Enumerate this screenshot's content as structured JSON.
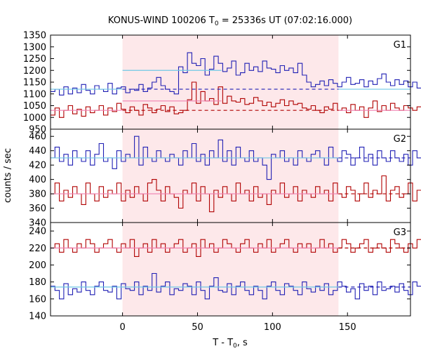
{
  "chart_data": {
    "type": "line",
    "title_main": "KONUS-WIND 100206 T",
    "title_sub": "0",
    "title_rest": " = 25336s UT (07:02:16.000)",
    "xlabel_main": "T - T",
    "xlabel_sub": "0",
    "xlabel_rest": ", s",
    "ylabel": "counts / sec",
    "xlim": [
      -48,
      192
    ],
    "x_ticks": [
      0,
      50,
      100,
      150
    ],
    "shaded_interval": [
      0,
      144
    ],
    "colors": {
      "blue_series": "#1f1fb4",
      "red_series": "#b00000",
      "blue_fit": "#70c8e6",
      "red_fit": "#f080b0",
      "shade": "#fde8ea"
    },
    "panels": [
      {
        "label": "G1",
        "ylim": [
          950,
          1350
        ],
        "y_ticks": [
          950,
          1000,
          1050,
          1100,
          1150,
          1200,
          1250,
          1300,
          1350
        ],
        "series": [
          {
            "color_key": "blue",
            "x0": -48,
            "dt": 2.944,
            "values": [
              1110,
              1120,
              1095,
              1130,
              1100,
              1125,
              1105,
              1140,
              1115,
              1100,
              1135,
              1120,
              1110,
              1145,
              1100,
              1125,
              1130,
              1105,
              1120,
              1115,
              1140,
              1110,
              1125,
              1150,
              1170,
              1135,
              1120,
              1110,
              1100,
              1215,
              1190,
              1275,
              1230,
              1220,
              1250,
              1180,
              1205,
              1260,
              1230,
              1195,
              1210,
              1240,
              1180,
              1190,
              1230,
              1200,
              1215,
              1195,
              1240,
              1210,
              1205,
              1190,
              1220,
              1200,
              1210,
              1190,
              1230,
              1180,
              1150,
              1130,
              1140,
              1155,
              1135,
              1160,
              1145,
              1130,
              1150,
              1170,
              1140,
              1145,
              1160,
              1130,
              1155,
              1140,
              1165,
              1185,
              1150,
              1135,
              1160,
              1140,
              1155,
              1130,
              1150,
              1125,
              1110,
              1140,
              1130,
              1120,
              1145,
              1120,
              1130,
              1110,
              1130,
              1120,
              1140,
              1105,
              1125,
              1135,
              1115,
              1130,
              1120,
              1110,
              1125,
              1115,
              1130,
              1120,
              1105,
              1125,
              1110,
              1120,
              1130,
              1115,
              1120
            ]
          },
          {
            "color_key": "red",
            "x0": -48,
            "dt": 2.944,
            "values": [
              1010,
              1040,
              1000,
              1030,
              1050,
              1015,
              1035,
              1005,
              1045,
              1020,
              1030,
              1050,
              1010,
              1040,
              1025,
              1060,
              1035,
              1020,
              1045,
              1030,
              1010,
              1055,
              1040,
              1020,
              1035,
              1050,
              1025,
              1045,
              1015,
              1020,
              1030,
              1075,
              1150,
              1060,
              1110,
              1070,
              1080,
              1055,
              1130,
              1060,
              1090,
              1070,
              1065,
              1080,
              1055,
              1060,
              1085,
              1070,
              1050,
              1065,
              1045,
              1060,
              1075,
              1050,
              1070,
              1055,
              1060,
              1040,
              1035,
              1050,
              1030,
              1020,
              1045,
              1035,
              1060,
              1030,
              1040,
              1020,
              1055,
              1030,
              1045,
              1000,
              1040,
              1070,
              1025,
              1050,
              1030,
              1060,
              1040,
              1030,
              1050,
              1040,
              1030,
              1045,
              1020,
              1035,
              1045,
              1025,
              1040,
              1060,
              1030,
              1050,
              1030,
              1040,
              1020,
              1045,
              1030,
              1035,
              1050,
              1025,
              1040,
              1030,
              1045,
              1020,
              1035,
              1040,
              1030,
              1025,
              1045,
              1035,
              1020,
              1040,
              1030
            ]
          }
        ],
        "fits": [
          {
            "color_key": "blue",
            "style": "solid",
            "x": [
              -48,
              0
            ],
            "y": 1120
          },
          {
            "color_key": "blue",
            "style": "solid",
            "x": [
              0,
              66
            ],
            "y": 1200
          },
          {
            "color_key": "blue",
            "style": "dashed",
            "x": [
              0,
              144
            ],
            "y": 1120
          },
          {
            "color_key": "blue",
            "style": "solid",
            "x": [
              144,
              192
            ],
            "y": 1120
          },
          {
            "color_key": "red",
            "style": "solid",
            "x": [
              -48,
              0
            ],
            "y": 1030
          },
          {
            "color_key": "red",
            "style": "solid",
            "x": [
              0,
              66
            ],
            "y": 1070
          },
          {
            "color_key": "red",
            "style": "dashed",
            "x": [
              0,
              144
            ],
            "y": 1030
          },
          {
            "color_key": "red",
            "style": "solid",
            "x": [
              144,
              192
            ],
            "y": 1030
          }
        ]
      },
      {
        "label": "G2",
        "ylim": [
          340,
          470
        ],
        "y_ticks": [
          340,
          360,
          380,
          400,
          420,
          440,
          460
        ],
        "series": [
          {
            "color_key": "blue",
            "x0": -48,
            "dt": 2.944,
            "values": [
              430,
              445,
              425,
              435,
              420,
              440,
              430,
              425,
              440,
              420,
              435,
              450,
              425,
              430,
              415,
              440,
              425,
              435,
              430,
              460,
              420,
              445,
              430,
              425,
              440,
              430,
              425,
              435,
              430,
              420,
              440,
              430,
              450,
              425,
              435,
              420,
              440,
              430,
              455,
              425,
              440,
              420,
              445,
              430,
              425,
              440,
              425,
              430,
              420,
              400,
              435,
              430,
              440,
              425,
              430,
              420,
              440,
              430,
              425,
              435,
              440,
              430,
              420,
              445,
              430,
              425,
              440,
              435,
              420,
              430,
              445,
              425,
              435,
              420,
              440,
              430,
              425,
              440,
              430,
              425,
              435,
              420,
              440,
              430,
              445,
              425,
              430,
              440,
              420,
              435,
              430,
              425,
              440,
              430,
              420,
              435,
              445,
              425,
              430,
              440,
              420,
              435,
              430,
              425,
              440,
              430,
              415,
              445,
              430,
              435,
              420,
              440,
              430
            ]
          },
          {
            "color_key": "red",
            "x0": -48,
            "dt": 2.944,
            "values": [
              380,
              395,
              370,
              385,
              375,
              390,
              380,
              365,
              395,
              380,
              370,
              390,
              375,
              385,
              380,
              395,
              370,
              385,
              375,
              390,
              380,
              370,
              395,
              400,
              385,
              370,
              390,
              380,
              375,
              360,
              385,
              380,
              395,
              370,
              390,
              380,
              355,
              385,
              375,
              390,
              380,
              370,
              395,
              380,
              385,
              370,
              390,
              375,
              380,
              365,
              385,
              380,
              395,
              375,
              380,
              390,
              370,
              385,
              380,
              375,
              390,
              380,
              385,
              370,
              395,
              380,
              375,
              390,
              385,
              370,
              380,
              395,
              375,
              385,
              380,
              405,
              370,
              385,
              390,
              375,
              380,
              395,
              370,
              385,
              380,
              375,
              390,
              380,
              385,
              370,
              395,
              380,
              375,
              390,
              380,
              385,
              370,
              395,
              380,
              375,
              390,
              385,
              370,
              380,
              395,
              375,
              385,
              380,
              390,
              375,
              400,
              380,
              385
            ]
          }
        ],
        "fits": [
          {
            "color_key": "blue",
            "style": "solid",
            "x": [
              -48,
              144
            ],
            "y": 430
          },
          {
            "color_key": "blue",
            "style": "dashed",
            "x": [
              144,
              192
            ],
            "y": 430
          },
          {
            "color_key": "red",
            "style": "solid",
            "x": [
              -48,
              144
            ],
            "y": 380
          },
          {
            "color_key": "red",
            "style": "dashed",
            "x": [
              144,
              192
            ],
            "y": 380
          }
        ]
      },
      {
        "label": "G3",
        "ylim": [
          140,
          250
        ],
        "y_ticks": [
          140,
          160,
          180,
          200,
          220,
          240
        ],
        "series": [
          {
            "color_key": "blue",
            "x0": -48,
            "dt": 2.944,
            "values": [
              175,
              170,
              160,
              178,
              165,
              172,
              168,
              180,
              170,
              165,
              175,
              180,
              170,
              168,
              175,
              160,
              178,
              172,
              170,
              180,
              165,
              175,
              170,
              190,
              168,
              175,
              180,
              165,
              172,
              170,
              178,
              175,
              165,
              180,
              170,
              160,
              175,
              185,
              170,
              168,
              178,
              165,
              175,
              180,
              170,
              165,
              175,
              170,
              160,
              175,
              180,
              170,
              165,
              178,
              175,
              170,
              165,
              180,
              172,
              168,
              175,
              170,
              178,
              165,
              170,
              180,
              175,
              168,
              172,
              160,
              178,
              170,
              175,
              165,
              180,
              170,
              172,
              175,
              168,
              178,
              170,
              165,
              180,
              175,
              170,
              168,
              175,
              180,
              165,
              172,
              175,
              170,
              178,
              168,
              175,
              172,
              180,
              165,
              175,
              170,
              178,
              172,
              168,
              175,
              180,
              170,
              165,
              178,
              172,
              175,
              195,
              170,
              175
            ]
          },
          {
            "color_key": "red",
            "x0": -48,
            "dt": 2.944,
            "values": [
              220,
              225,
              215,
              230,
              220,
              215,
              225,
              220,
              230,
              225,
              215,
              220,
              225,
              230,
              220,
              215,
              225,
              220,
              230,
              210,
              220,
              225,
              215,
              230,
              220,
              225,
              215,
              220,
              225,
              230,
              215,
              220,
              225,
              210,
              230,
              220,
              225,
              215,
              220,
              230,
              225,
              220,
              215,
              225,
              230,
              220,
              215,
              225,
              220,
              230,
              215,
              220,
              225,
              230,
              220,
              215,
              225,
              220,
              225,
              215,
              220,
              230,
              220,
              225,
              215,
              220,
              230,
              225,
              215,
              220,
              225,
              230,
              215,
              220,
              225,
              220,
              215,
              230,
              225,
              220,
              215,
              225,
              220,
              230,
              215,
              220,
              225,
              230,
              220,
              215,
              225,
              220,
              230,
              215,
              220,
              225,
              215,
              230,
              220,
              225,
              215,
              220,
              230,
              225,
              220,
              215,
              225,
              220,
              230,
              220,
              215,
              225,
              220
            ]
          }
        ],
        "fits": [
          {
            "color_key": "blue",
            "style": "solid",
            "x": [
              -48,
              144
            ],
            "y": 174
          },
          {
            "color_key": "blue",
            "style": "dashed",
            "x": [
              144,
              192
            ],
            "y": 174
          },
          {
            "color_key": "red",
            "style": "solid",
            "x": [
              -48,
              144
            ],
            "y": 220
          },
          {
            "color_key": "red",
            "style": "dashed",
            "x": [
              144,
              192
            ],
            "y": 220
          }
        ]
      }
    ]
  }
}
